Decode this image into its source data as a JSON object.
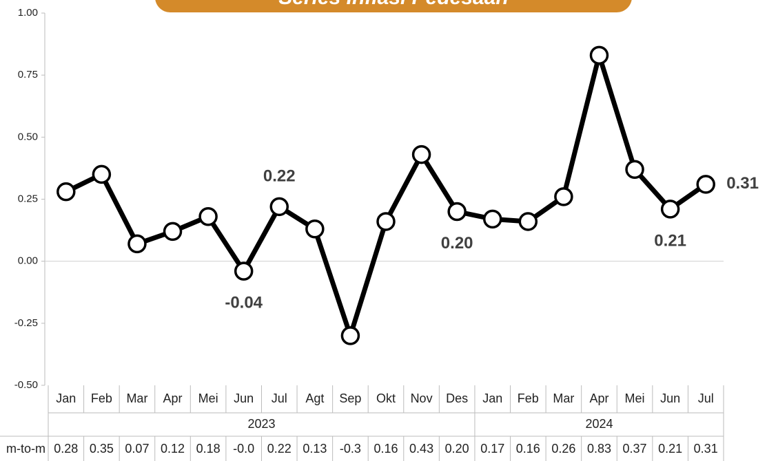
{
  "chart_data": {
    "type": "line",
    "title": "Series Inflasi Pedesaan",
    "categories": [
      "Jan",
      "Feb",
      "Mar",
      "Apr",
      "Mei",
      "Jun",
      "Jul",
      "Agt",
      "Sep",
      "Okt",
      "Nov",
      "Des",
      "Jan",
      "Feb",
      "Mar",
      "Apr",
      "Mei",
      "Jun",
      "Jul"
    ],
    "groups": [
      {
        "name": "2023",
        "span": 12
      },
      {
        "name": "2024",
        "span": 7
      }
    ],
    "series": [
      {
        "name": "m-to-m",
        "color": "#000000",
        "values": [
          0.28,
          0.35,
          0.07,
          0.12,
          0.18,
          -0.04,
          0.22,
          0.13,
          -0.3,
          0.16,
          0.43,
          0.2,
          0.17,
          0.16,
          0.26,
          0.83,
          0.37,
          0.21,
          0.31
        ],
        "value_labels": [
          "0.28",
          "0.35",
          "0.07",
          "0.12",
          "0.18",
          "-0.0",
          "0.22",
          "0.13",
          "-0.3",
          "0.16",
          "0.43",
          "0.20",
          "0.17",
          "0.16",
          "0.26",
          "0.83",
          "0.37",
          "0.21",
          "0.31"
        ],
        "data_labels": [
          null,
          null,
          null,
          null,
          null,
          "-0.04",
          "0.22",
          null,
          null,
          null,
          null,
          "0.20",
          null,
          null,
          null,
          null,
          null,
          "0.21",
          "0.31"
        ]
      }
    ],
    "ylim": [
      -0.5,
      1.0
    ],
    "yticks": [
      {
        "value": -0.5,
        "label": "-0.50"
      },
      {
        "value": -0.25,
        "label": "-0.25"
      },
      {
        "value": 0,
        "label": "0.00"
      },
      {
        "value": 0.25,
        "label": "0.25"
      },
      {
        "value": 0.5,
        "label": "0.50"
      },
      {
        "value": 0.75,
        "label": "0.75"
      },
      {
        "value": 1.0,
        "label": "1.00"
      }
    ],
    "banner_color": "#d48a2a"
  }
}
